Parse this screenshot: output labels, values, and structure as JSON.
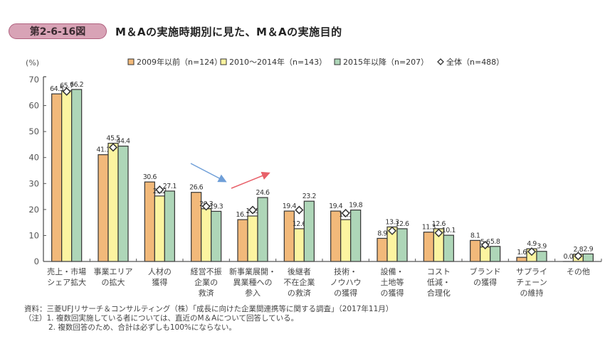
{
  "header": {
    "figure_number": "第2-6-16図",
    "title": "M＆Aの実施時期別に見た、M＆Aの実施目的"
  },
  "chart_data": {
    "type": "bar",
    "title": "M＆Aの実施時期別に見た、M＆Aの実施目的",
    "ylabel": "(%)",
    "xlabel": "",
    "ylim": [
      0,
      70
    ],
    "yticks": [
      0,
      10,
      20,
      30,
      40,
      50,
      60,
      70
    ],
    "grid": false,
    "legend_position": "top",
    "categories": [
      [
        "売上・市場",
        "シェア拡大"
      ],
      [
        "事業エリア",
        "の拡大"
      ],
      [
        "人材の",
        "獲得"
      ],
      [
        "経営不振",
        "企業の",
        "救済"
      ],
      [
        "新事業展開・",
        "異業種への",
        "参入"
      ],
      [
        "後継者",
        "不在企業",
        "の救済"
      ],
      [
        "技術・",
        "ノウハウ",
        "の獲得"
      ],
      [
        "設備・",
        "土地等",
        "の獲得"
      ],
      [
        "コスト",
        "低減・",
        "合理化"
      ],
      [
        "ブランド",
        "の獲得"
      ],
      [
        "サプライ",
        "チェーン",
        "の維持"
      ],
      [
        "その他"
      ]
    ],
    "series": [
      {
        "name": "2009年以前（n=124）",
        "color": "#f2b97a",
        "values": [
          64.5,
          41.1,
          30.6,
          26.6,
          16.1,
          19.4,
          19.4,
          8.9,
          11.3,
          8.1,
          1.6,
          0.0
        ]
      },
      {
        "name": "2010～2014年（n=143）",
        "color": "#fcf4a0",
        "values": [
          65.7,
          45.5,
          25.2,
          20.3,
          17.5,
          12.6,
          16.1,
          13.3,
          12.6,
          5.6,
          4.9,
          2.8
        ]
      },
      {
        "name": "2015年以降（n=207）",
        "color": "#aed6b8",
        "values": [
          66.2,
          44.4,
          27.1,
          19.3,
          24.6,
          23.2,
          19.8,
          12.6,
          10.1,
          5.8,
          3.9,
          2.9
        ]
      }
    ],
    "overall": {
      "name": "全体（n=488）",
      "marker": "diamond",
      "values": [
        65.4,
        43.9,
        27.6,
        21.2,
        19.8,
        19.8,
        18.6,
        11.8,
        11.0,
        6.3,
        3.8,
        2.1
      ]
    },
    "annotations": [
      {
        "type": "arrow",
        "direction": "down",
        "color": "#6f9fd8",
        "between_categories": [
          3,
          4
        ]
      },
      {
        "type": "arrow",
        "direction": "up",
        "color": "#e8616a",
        "between_categories": [
          4,
          5
        ]
      }
    ]
  },
  "notes": {
    "source": "資料：三菱UFJリサーチ＆コンサルティング（株）「成長に向けた企業間連携等に関する調査」（2017年11月）",
    "note1": "（注）1. 複数回実施している者については、直近のM＆Aについて回答している。",
    "note2": "2. 複数回答のため、合計は必ずしも100%にならない。"
  }
}
